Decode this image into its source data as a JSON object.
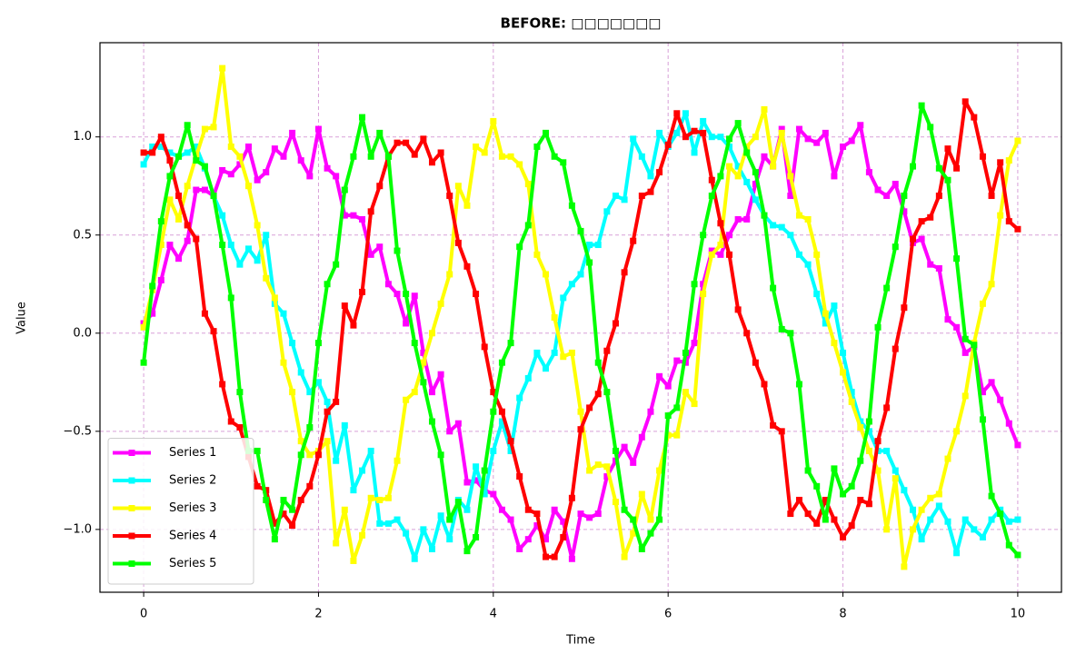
{
  "chart_data": {
    "type": "line",
    "title": "BEFORE: □□□□□□□",
    "xlabel": "Time",
    "ylabel": "Value",
    "x": [
      0,
      0.1,
      0.2,
      0.3,
      0.4,
      0.5,
      0.6,
      0.7,
      0.8,
      0.9,
      1,
      1.1,
      1.2,
      1.3,
      1.4,
      1.5,
      1.6,
      1.7,
      1.8,
      1.9,
      2,
      2.1,
      2.2,
      2.3,
      2.4,
      2.5,
      2.6,
      2.7,
      2.8,
      2.9,
      3,
      3.1,
      3.2,
      3.3,
      3.4,
      3.5,
      3.6,
      3.7,
      3.8,
      3.9,
      4,
      4.1,
      4.2,
      4.3,
      4.4,
      4.5,
      4.6,
      4.7,
      4.8,
      4.9,
      5,
      5.1,
      5.2,
      5.3,
      5.4,
      5.5,
      5.6,
      5.7,
      5.8,
      5.9,
      6,
      6.1,
      6.2,
      6.3,
      6.4,
      6.5,
      6.6,
      6.7,
      6.8,
      6.9,
      7,
      7.1,
      7.2,
      7.3,
      7.4,
      7.5,
      7.6,
      7.7,
      7.8,
      7.9,
      8,
      8.1,
      8.2,
      8.3,
      8.4,
      8.5,
      8.6,
      8.7,
      8.8,
      8.9,
      9,
      9.1,
      9.2,
      9.3,
      9.4,
      9.5,
      9.6,
      9.7,
      9.8,
      9.9,
      10
    ],
    "series": [
      {
        "name": "Series 1",
        "color": "#ff00ff",
        "values": [
          0.05,
          0.1,
          0.27,
          0.45,
          0.38,
          0.47,
          0.73,
          0.73,
          0.7,
          0.83,
          0.81,
          0.86,
          0.95,
          0.78,
          0.82,
          0.94,
          0.9,
          1.02,
          0.88,
          0.8,
          1.04,
          0.84,
          0.8,
          0.6,
          0.6,
          0.58,
          0.4,
          0.44,
          0.25,
          0.2,
          0.05,
          0.19,
          -0.1,
          -0.3,
          -0.21,
          -0.5,
          -0.46,
          -0.76,
          -0.75,
          -0.8,
          -0.82,
          -0.9,
          -0.95,
          -1.1,
          -1.05,
          -0.98,
          -1.05,
          -0.9,
          -0.96,
          -1.15,
          -0.92,
          -0.94,
          -0.92,
          -0.73,
          -0.65,
          -0.58,
          -0.66,
          -0.53,
          -0.4,
          -0.22,
          -0.27,
          -0.14,
          -0.15,
          -0.05,
          0.25,
          0.42,
          0.4,
          0.5,
          0.58,
          0.58,
          0.76,
          0.9,
          0.85,
          1.04,
          0.7,
          1.04,
          0.99,
          0.97,
          1.02,
          0.8,
          0.95,
          0.98,
          1.06,
          0.82,
          0.73,
          0.7,
          0.76,
          0.62,
          0.46,
          0.48,
          0.35,
          0.33,
          0.07,
          0.03,
          -0.1,
          -0.07,
          -0.3,
          -0.25,
          -0.34,
          -0.46,
          -0.57
        ]
      },
      {
        "name": "Series 2",
        "color": "#00ffff",
        "values": [
          0.86,
          0.95,
          0.95,
          0.92,
          0.9,
          0.92,
          0.95,
          0.84,
          0.7,
          0.6,
          0.45,
          0.35,
          0.43,
          0.37,
          0.5,
          0.15,
          0.1,
          -0.05,
          -0.2,
          -0.3,
          -0.25,
          -0.35,
          -0.65,
          -0.47,
          -0.8,
          -0.7,
          -0.6,
          -0.97,
          -0.97,
          -0.95,
          -1.02,
          -1.15,
          -1.0,
          -1.1,
          -0.93,
          -1.05,
          -0.85,
          -0.9,
          -0.68,
          -0.82,
          -0.6,
          -0.45,
          -0.6,
          -0.33,
          -0.23,
          -0.1,
          -0.18,
          -0.1,
          0.18,
          0.25,
          0.3,
          0.45,
          0.45,
          0.62,
          0.7,
          0.68,
          0.99,
          0.9,
          0.8,
          1.02,
          0.95,
          1.02,
          1.12,
          0.92,
          1.08,
          1.0,
          1.0,
          0.95,
          0.85,
          0.77,
          0.68,
          0.6,
          0.55,
          0.54,
          0.5,
          0.4,
          0.35,
          0.2,
          0.05,
          0.14,
          -0.1,
          -0.3,
          -0.45,
          -0.5,
          -0.6,
          -0.6,
          -0.7,
          -0.8,
          -0.9,
          -1.05,
          -0.95,
          -0.88,
          -0.96,
          -1.12,
          -0.95,
          -1.0,
          -1.04,
          -0.95,
          -0.9,
          -0.96,
          -0.95
        ]
      },
      {
        "name": "Series 3",
        "color": "#ffff00",
        "values": [
          0.03,
          0.22,
          0.45,
          0.68,
          0.58,
          0.75,
          0.9,
          1.04,
          1.05,
          1.35,
          0.95,
          0.9,
          0.75,
          0.55,
          0.28,
          0.18,
          -0.15,
          -0.3,
          -0.55,
          -0.62,
          -0.6,
          -0.55,
          -1.07,
          -0.9,
          -1.16,
          -1.03,
          -0.84,
          -0.85,
          -0.84,
          -0.65,
          -0.34,
          -0.3,
          -0.15,
          0.0,
          0.15,
          0.3,
          0.75,
          0.65,
          0.95,
          0.92,
          1.08,
          0.9,
          0.9,
          0.86,
          0.76,
          0.4,
          0.3,
          0.08,
          -0.12,
          -0.1,
          -0.4,
          -0.7,
          -0.67,
          -0.68,
          -0.86,
          -1.14,
          -1.02,
          -0.82,
          -0.95,
          -0.7,
          -0.52,
          -0.52,
          -0.3,
          -0.36,
          0.2,
          0.4,
          0.45,
          0.85,
          0.8,
          0.95,
          1.0,
          1.14,
          0.85,
          1.02,
          0.8,
          0.6,
          0.58,
          0.4,
          0.1,
          -0.05,
          -0.2,
          -0.35,
          -0.48,
          -0.6,
          -0.7,
          -1.0,
          -0.74,
          -1.19,
          -1.0,
          -0.9,
          -0.84,
          -0.82,
          -0.64,
          -0.5,
          -0.32,
          -0.05,
          0.15,
          0.25,
          0.6,
          0.88,
          0.98
        ]
      },
      {
        "name": "Series 4",
        "color": "#ff0000",
        "values": [
          0.92,
          0.92,
          1.0,
          0.88,
          0.7,
          0.55,
          0.48,
          0.1,
          0.01,
          -0.26,
          -0.45,
          -0.48,
          -0.63,
          -0.78,
          -0.8,
          -0.97,
          -0.92,
          -0.98,
          -0.85,
          -0.78,
          -0.62,
          -0.4,
          -0.35,
          0.14,
          0.04,
          0.21,
          0.62,
          0.75,
          0.9,
          0.97,
          0.97,
          0.91,
          0.99,
          0.87,
          0.92,
          0.7,
          0.46,
          0.34,
          0.2,
          -0.07,
          -0.3,
          -0.4,
          -0.55,
          -0.73,
          -0.9,
          -0.92,
          -1.14,
          -1.14,
          -1.04,
          -0.84,
          -0.49,
          -0.38,
          -0.31,
          -0.09,
          0.05,
          0.31,
          0.47,
          0.7,
          0.72,
          0.82,
          0.96,
          1.12,
          1.0,
          1.03,
          1.02,
          0.78,
          0.56,
          0.4,
          0.12,
          0.0,
          -0.15,
          -0.26,
          -0.47,
          -0.5,
          -0.92,
          -0.85,
          -0.92,
          -0.97,
          -0.85,
          -0.95,
          -1.04,
          -0.98,
          -0.85,
          -0.87,
          -0.55,
          -0.38,
          -0.08,
          0.13,
          0.48,
          0.57,
          0.59,
          0.7,
          0.94,
          0.84,
          1.18,
          1.1,
          0.9,
          0.7,
          0.87,
          0.57,
          0.53
        ]
      },
      {
        "name": "Series 5",
        "color": "#00ff00",
        "values": [
          -0.15,
          0.24,
          0.57,
          0.8,
          0.9,
          1.06,
          0.88,
          0.85,
          0.7,
          0.45,
          0.18,
          -0.3,
          -0.6,
          -0.6,
          -0.85,
          -1.05,
          -0.85,
          -0.9,
          -0.62,
          -0.48,
          -0.05,
          0.25,
          0.35,
          0.73,
          0.9,
          1.1,
          0.9,
          1.02,
          0.9,
          0.42,
          0.2,
          -0.05,
          -0.25,
          -0.45,
          -0.62,
          -0.95,
          -0.86,
          -1.11,
          -1.04,
          -0.7,
          -0.4,
          -0.15,
          -0.05,
          0.44,
          0.55,
          0.95,
          1.02,
          0.9,
          0.87,
          0.65,
          0.52,
          0.36,
          -0.15,
          -0.3,
          -0.6,
          -0.9,
          -0.95,
          -1.1,
          -1.02,
          -0.95,
          -0.42,
          -0.38,
          -0.1,
          0.25,
          0.5,
          0.7,
          0.8,
          0.99,
          1.07,
          0.92,
          0.82,
          0.6,
          0.23,
          0.02,
          0.0,
          -0.26,
          -0.7,
          -0.78,
          -0.95,
          -0.69,
          -0.82,
          -0.78,
          -0.65,
          -0.45,
          0.03,
          0.23,
          0.44,
          0.7,
          0.85,
          1.16,
          1.05,
          0.84,
          0.78,
          0.38,
          -0.03,
          -0.06,
          -0.44,
          -0.83,
          -0.92,
          -1.08,
          -1.13
        ]
      }
    ],
    "xlim": [
      -0.5,
      10.5
    ],
    "xticks": [
      0,
      2,
      4,
      6,
      8,
      10
    ],
    "ylim": [
      -1.32,
      1.48
    ],
    "yticks": [
      {
        "value": -1,
        "label": "−1.0"
      },
      {
        "value": -0.5,
        "label": "−0.5"
      },
      {
        "value": 0,
        "label": "0.0"
      },
      {
        "value": 0.5,
        "label": "0.5"
      },
      {
        "value": 1,
        "label": "1.0"
      }
    ],
    "grid": true,
    "grid_color": "#d8a0d8",
    "legend": "lower left"
  }
}
